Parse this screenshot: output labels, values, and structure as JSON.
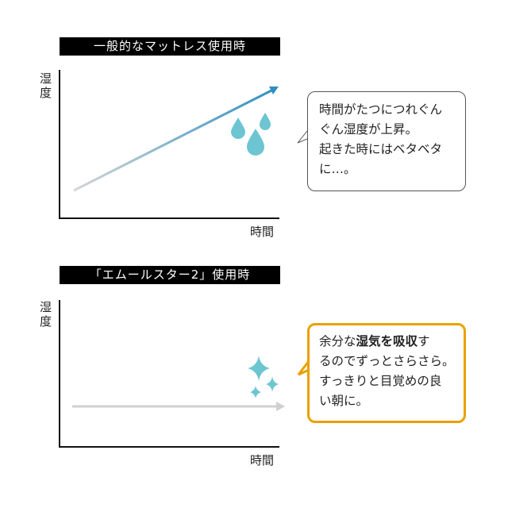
{
  "panels": [
    {
      "title": "一般的なマットレス使用時",
      "ylabel": "湿度",
      "xlabel": "時間",
      "bubble": {
        "lines": [
          "時間がたつにつれぐん",
          "ぐん湿度が上昇。",
          "起きた時にはベタベタ",
          "に…。"
        ]
      }
    },
    {
      "title": "「エムールスター2」使用時",
      "ylabel": "湿度",
      "xlabel": "時間",
      "bubble": {
        "line1_pre": "余分な",
        "line1_bold": "湿気を吸収",
        "line1_post": "す",
        "lines": [
          "るのでずっとさらさら。",
          "すっきりと目覚めの良",
          "い朝に。"
        ]
      }
    }
  ],
  "colors": {
    "accent_teal": "#6CC5D0",
    "bubble2_border": "#E9A100",
    "arrow_end": "#2E8FBF",
    "arrow_start": "#D0D0D0"
  }
}
